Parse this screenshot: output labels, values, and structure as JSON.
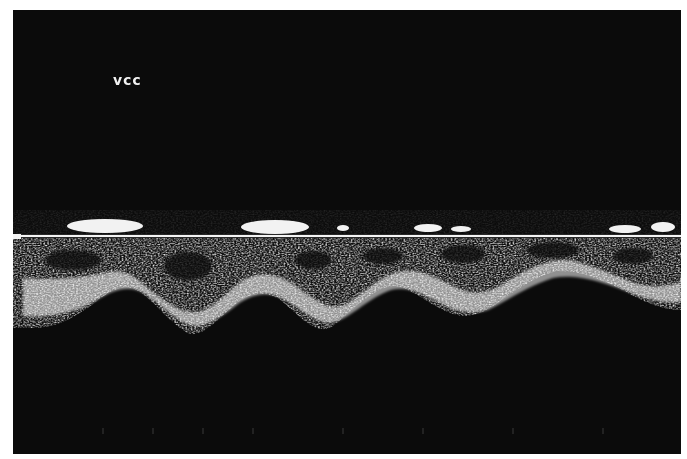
{
  "image": {
    "label": "vcc",
    "colors": {
      "background": "#0b0b0b",
      "spectrum": "#ffffff",
      "baseline": "#f4f4f4",
      "border": "#ffffff"
    }
  }
}
